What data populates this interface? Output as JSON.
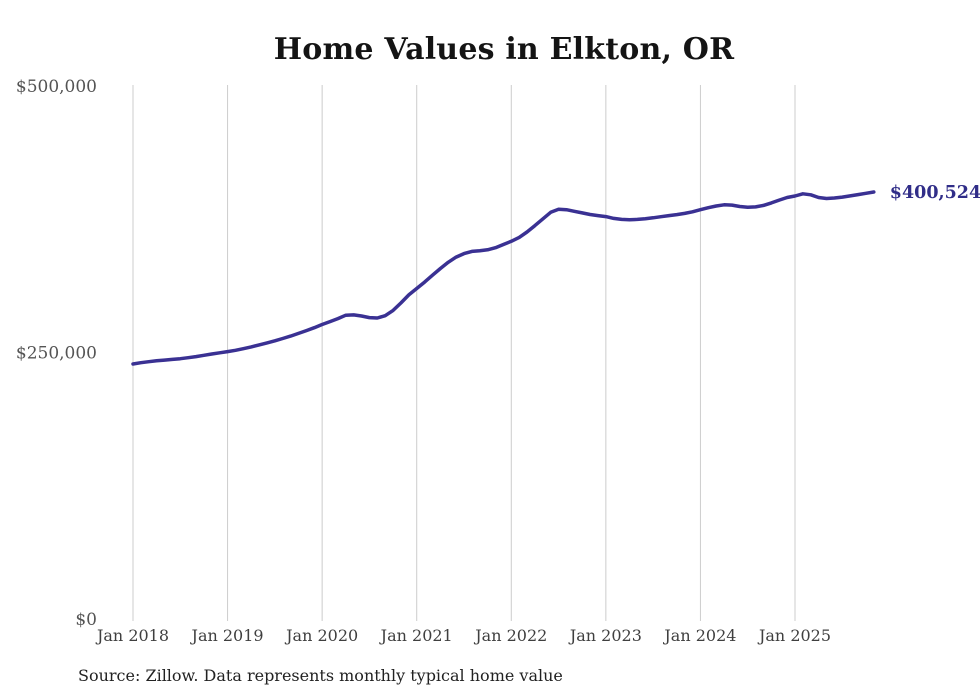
{
  "chart": {
    "title": "Home Values in Elkton, OR",
    "source": "Source: Zillow. Data represents monthly typical home value",
    "end_label": "$400,524"
  },
  "chart_data": {
    "type": "line",
    "title": "Home Values in Elkton, OR",
    "xlabel": "",
    "ylabel": "",
    "ylim": [
      0,
      500000
    ],
    "grid": "vertical-only",
    "legend": "none",
    "frequency": "monthly",
    "x_start": "2018-01",
    "x_end": "2025-11",
    "y_ticks": [
      {
        "label": "$500,000",
        "value": 500000
      },
      {
        "label": "$250,000",
        "value": 250000
      },
      {
        "label": "$0",
        "value": 0
      }
    ],
    "x_tick_labels": [
      "Jan 2018",
      "Jan 2019",
      "Jan 2020",
      "Jan 2021",
      "Jan 2022",
      "Jan 2023",
      "Jan 2024",
      "Jan 2025"
    ],
    "end_label": "$400,524",
    "final_value": 400524,
    "months": [
      "2018-01",
      "2018-02",
      "2018-03",
      "2018-04",
      "2018-05",
      "2018-06",
      "2018-07",
      "2018-08",
      "2018-09",
      "2018-10",
      "2018-11",
      "2018-12",
      "2019-01",
      "2019-02",
      "2019-03",
      "2019-04",
      "2019-05",
      "2019-06",
      "2019-07",
      "2019-08",
      "2019-09",
      "2019-10",
      "2019-11",
      "2019-12",
      "2020-01",
      "2020-02",
      "2020-03",
      "2020-04",
      "2020-05",
      "2020-06",
      "2020-07",
      "2020-08",
      "2020-09",
      "2020-10",
      "2020-11",
      "2020-12",
      "2021-01",
      "2021-02",
      "2021-03",
      "2021-04",
      "2021-05",
      "2021-06",
      "2021-07",
      "2021-08",
      "2021-09",
      "2021-10",
      "2021-11",
      "2021-12",
      "2022-01",
      "2022-02",
      "2022-03",
      "2022-04",
      "2022-05",
      "2022-06",
      "2022-07",
      "2022-08",
      "2022-09",
      "2022-10",
      "2022-11",
      "2022-12",
      "2023-01",
      "2023-02",
      "2023-03",
      "2023-04",
      "2023-05",
      "2023-06",
      "2023-07",
      "2023-08",
      "2023-09",
      "2023-10",
      "2023-11",
      "2023-12",
      "2024-01",
      "2024-02",
      "2024-03",
      "2024-04",
      "2024-05",
      "2024-06",
      "2024-07",
      "2024-08",
      "2024-09",
      "2024-10",
      "2024-11",
      "2024-12",
      "2025-01",
      "2025-02",
      "2025-03",
      "2025-04",
      "2025-05",
      "2025-06",
      "2025-07",
      "2025-08",
      "2025-09",
      "2025-10",
      "2025-11"
    ],
    "values": [
      239200,
      240400,
      241400,
      242200,
      242900,
      243500,
      244200,
      245100,
      246200,
      247400,
      248600,
      249700,
      250800,
      252100,
      253600,
      255300,
      257100,
      259000,
      261000,
      263100,
      265400,
      267900,
      270500,
      273300,
      276300,
      279000,
      281800,
      285000,
      285300,
      284200,
      282700,
      282400,
      284500,
      289500,
      296500,
      304000,
      310000,
      316000,
      322500,
      328800,
      334600,
      339500,
      342800,
      344800,
      345500,
      346300,
      348300,
      351300,
      354300,
      358000,
      363000,
      369000,
      375300,
      381500,
      384300,
      384000,
      382500,
      381000,
      379500,
      378400,
      377500,
      375800,
      374900,
      374600,
      374900,
      375500,
      376400,
      377400,
      378400,
      379400,
      380500,
      382000,
      384000,
      385800,
      387400,
      388600,
      388300,
      387000,
      386200,
      386600,
      388000,
      390300,
      393000,
      395400,
      396800,
      398900,
      397900,
      395400,
      394500,
      394900,
      395800,
      396900,
      398100,
      399300,
      400524
    ],
    "colors": {
      "line": "#3a3193",
      "accent_label": "#302d88",
      "grid": "#cccccc",
      "y_tick_text": "#545454",
      "x_tick_text": "#3f3f3f",
      "title_text": "#141414",
      "source_text": "#222222",
      "background": "#ffffff"
    }
  }
}
